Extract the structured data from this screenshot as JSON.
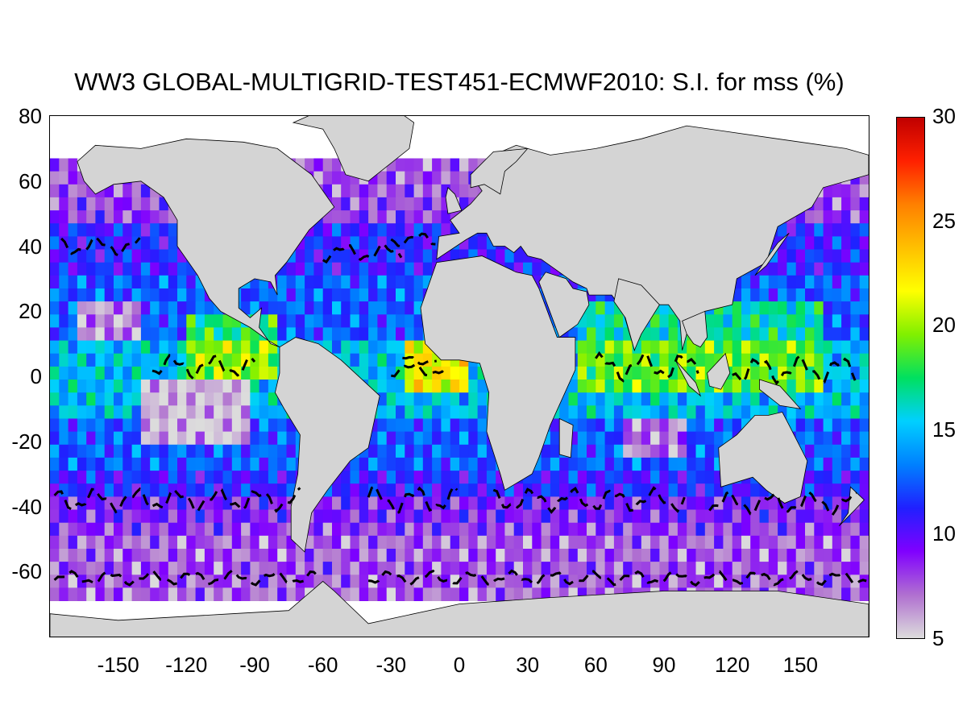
{
  "title": "WW3 GLOBAL-MULTIGRID-TEST451-ECMWF2010: S.I. for mss (%)",
  "map": {
    "lon_range": [
      -180,
      180
    ],
    "lat_range": [
      -80,
      80
    ],
    "x_ticks": [
      "-150",
      "-120",
      "-90",
      "-60",
      "-30",
      "0",
      "30",
      "60",
      "90",
      "120",
      "150"
    ],
    "x_tick_values": [
      -150,
      -120,
      -90,
      -60,
      -30,
      0,
      30,
      60,
      90,
      120,
      150
    ],
    "y_ticks": [
      "80",
      "60",
      "40",
      "20",
      "0",
      "-20",
      "-40",
      "-60"
    ],
    "y_tick_values": [
      80,
      60,
      40,
      20,
      0,
      -20,
      -40,
      -60
    ],
    "land_color": "#d4d4d4",
    "nodata_color": "#ffffff",
    "contour_color": "#000000",
    "data_lat_extent": [
      -67,
      67
    ]
  },
  "colorbar": {
    "ticks": [
      "30",
      "25",
      "20",
      "15",
      "10",
      "5"
    ],
    "tick_values": [
      30,
      25,
      20,
      15,
      10,
      5
    ],
    "range": [
      5,
      30
    ],
    "colors": [
      "#dcdcdc",
      "#b070d0",
      "#8000ff",
      "#2020ff",
      "#0080ff",
      "#00d0ff",
      "#00e060",
      "#80f000",
      "#ffff00",
      "#ffc000",
      "#ff8000",
      "#ff2000",
      "#c00000"
    ]
  }
}
